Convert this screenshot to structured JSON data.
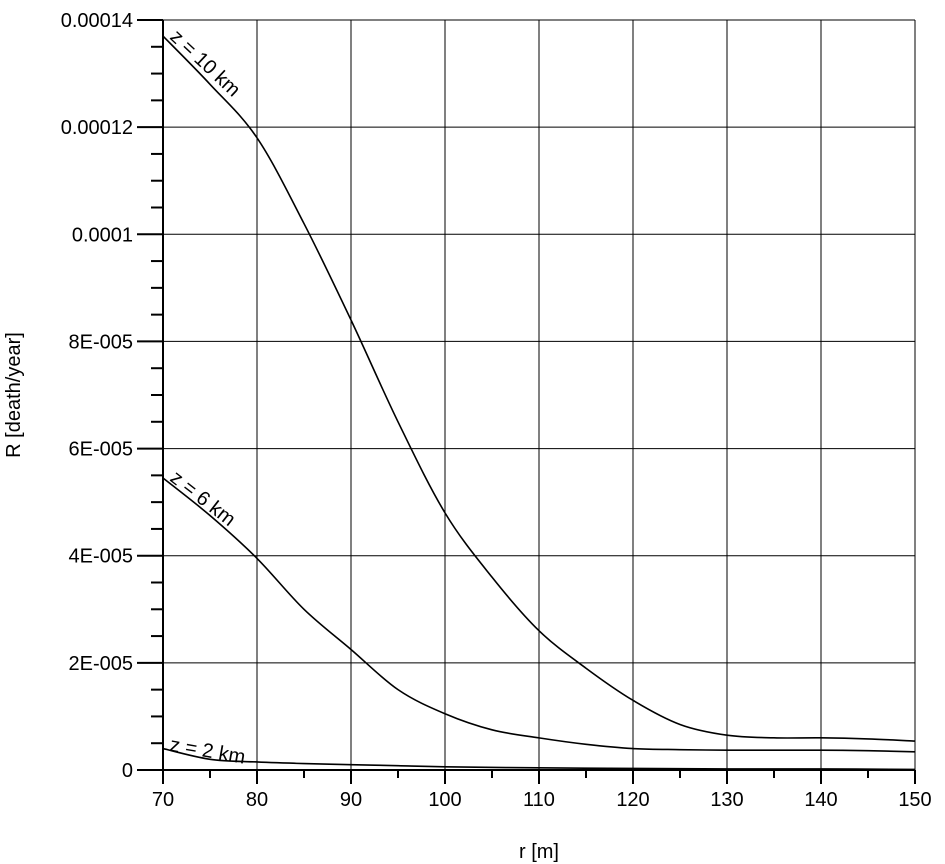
{
  "chart_data": {
    "type": "line",
    "title": "",
    "xlabel": "r [m]",
    "ylabel": "R [death/year]",
    "xlim": [
      70,
      150
    ],
    "ylim": [
      0,
      0.00014
    ],
    "x_ticks": [
      70,
      80,
      90,
      100,
      110,
      120,
      130,
      140,
      150
    ],
    "x_tick_labels": [
      "70",
      "80",
      "90",
      "100",
      "110",
      "120",
      "130",
      "140",
      "150"
    ],
    "y_ticks": [
      0,
      2e-05,
      4e-05,
      6e-05,
      8e-05,
      0.0001,
      0.00012,
      0.00014
    ],
    "y_tick_labels": [
      "0",
      "2E-005",
      "4E-005",
      "6E-005",
      "8E-005",
      "0.0001",
      "0.00012",
      "0.00014"
    ],
    "grid": true,
    "legend": "none",
    "series": [
      {
        "name": "z = 10 km",
        "x": [
          70,
          75,
          80,
          85,
          90,
          95,
          100,
          105,
          110,
          115,
          120,
          125,
          130,
          135,
          140,
          145,
          150
        ],
        "y": [
          0.000137,
          0.000128,
          0.000118,
          0.000102,
          8.4e-05,
          6.5e-05,
          4.8e-05,
          3.6e-05,
          2.6e-05,
          1.9e-05,
          1.3e-05,
          8.5e-06,
          6.5e-06,
          6e-06,
          6e-06,
          5.8e-06,
          5.4e-06
        ]
      },
      {
        "name": "z = 6 km",
        "x": [
          70,
          75,
          80,
          85,
          90,
          95,
          100,
          105,
          110,
          115,
          120,
          125,
          130,
          135,
          140,
          145,
          150
        ],
        "y": [
          5.45e-05,
          4.75e-05,
          3.95e-05,
          3e-05,
          2.25e-05,
          1.5e-05,
          1.05e-05,
          7.5e-06,
          6e-06,
          4.8e-06,
          4e-06,
          3.8e-06,
          3.7e-06,
          3.7e-06,
          3.7e-06,
          3.6e-06,
          3.4e-06
        ]
      },
      {
        "name": "z = 2 km",
        "x": [
          70,
          75,
          80,
          85,
          90,
          95,
          100,
          110,
          120,
          130,
          140,
          150
        ],
        "y": [
          4e-06,
          2e-06,
          1.5e-06,
          1.2e-06,
          1e-06,
          8e-07,
          6e-07,
          4e-07,
          3e-07,
          2e-07,
          2e-07,
          1e-07
        ]
      }
    ]
  }
}
